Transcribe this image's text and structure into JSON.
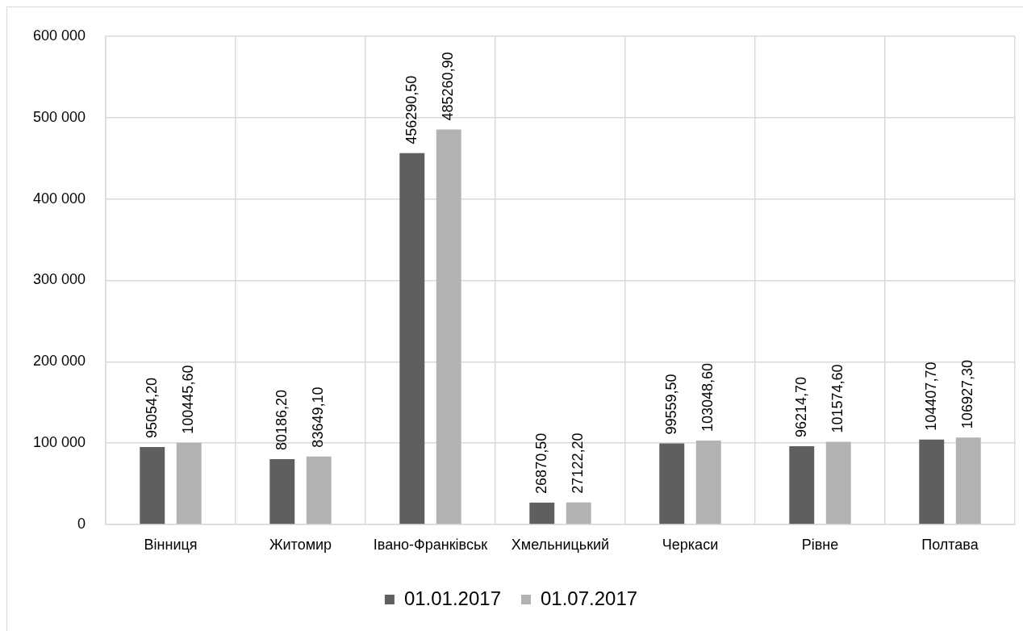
{
  "chart_data": {
    "type": "bar",
    "categories": [
      "Вінниця",
      "Житомир",
      "Івано-Франківськ",
      "Хмельницький",
      "Черкаси",
      "Рівне",
      "Полтава"
    ],
    "series": [
      {
        "name": "01.01.2017",
        "color": "#5f5f5f",
        "values": [
          95054.2,
          80186.2,
          456290.5,
          26870.5,
          99559.5,
          96214.7,
          104407.7
        ],
        "value_labels": [
          "95054,20",
          "80186,20",
          "456290,50",
          "26870,50",
          "99559,50",
          "96214,70",
          "104407,70"
        ]
      },
      {
        "name": "01.07.2017",
        "color": "#b2b2b2",
        "values": [
          100445.6,
          83649.1,
          485260.9,
          27122.2,
          103048.6,
          101574.6,
          106927.3
        ],
        "value_labels": [
          "100445,60",
          "83649,10",
          "485260,90",
          "27122,20",
          "103048,60",
          "101574,60",
          "106927,30"
        ]
      }
    ],
    "ylim": [
      0,
      600000
    ],
    "yticks": [
      0,
      {
        "value": 100000,
        "label": "100 000"
      },
      {
        "value": 200000,
        "label": "200 000"
      },
      {
        "value": 300000,
        "label": "300 000"
      },
      {
        "value": 400000,
        "label": "400 000"
      },
      {
        "value": 500000,
        "label": "500 000"
      },
      {
        "value": 600000,
        "label": "600 000"
      }
    ],
    "grid": true,
    "legend": "bottom"
  }
}
